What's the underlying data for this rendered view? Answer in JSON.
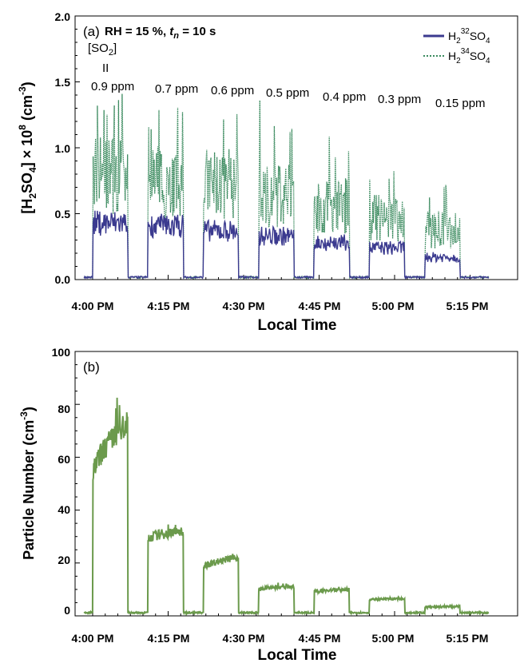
{
  "chart_data": [
    {
      "type": "line",
      "panel_label": "(a)",
      "condition_label": "RH = 15 %, t_n = 10 s",
      "condition_parts": {
        "rh": "RH = 15 %, ",
        "t": "t",
        "n": "n",
        "rest": " = 10 s"
      },
      "ylabel": "[H2SO4] × 10^8 (cm^-3)",
      "ylabel_parts": {
        "a": "[H",
        "b": "2",
        "c": "SO",
        "d": "4",
        "e": "] × 10",
        "f": "8",
        "g": " (cm",
        "h": "-3",
        "i": ")"
      },
      "xlabel": "Local Time",
      "xticks": [
        "4:00 PM",
        "4:15 PM",
        "4:30 PM",
        "4:45 PM",
        "5:00 PM",
        "5:15 PM"
      ],
      "yticks": [
        "0.0",
        "0.5",
        "1.0",
        "1.5",
        "2.0"
      ],
      "ylim": [
        0,
        2.0
      ],
      "xlim_min_after_4pm": [
        -2,
        79
      ],
      "so2_header": {
        "a": "[SO",
        "b": "2",
        "c": "]",
        "eq": "II"
      },
      "annotations": [
        "0.9 ppm",
        "0.7 ppm",
        "0.6 ppm",
        "0.5 ppm",
        "0.4 ppm",
        "0.3 ppm",
        "0.15 ppm"
      ],
      "series": [
        {
          "name": "H2 32SO4",
          "name_parts": {
            "a": "H",
            "b": "2",
            "c": "32",
            "d": "SO",
            "e": "4"
          },
          "color": "#3b3a8f",
          "style": "solid",
          "pulses": [
            {
              "start_min": 0,
              "end_min": 7,
              "level": 0.43
            },
            {
              "start_min": 11,
              "end_min": 18,
              "level": 0.41
            },
            {
              "start_min": 22,
              "end_min": 29,
              "level": 0.37
            },
            {
              "start_min": 33,
              "end_min": 40,
              "level": 0.33
            },
            {
              "start_min": 44,
              "end_min": 51,
              "level": 0.28
            },
            {
              "start_min": 55,
              "end_min": 62,
              "level": 0.24
            },
            {
              "start_min": 66,
              "end_min": 73,
              "level": 0.17
            }
          ]
        },
        {
          "name": "H2 34SO4",
          "name_parts": {
            "a": "H",
            "b": "2",
            "c": "34",
            "d": "SO",
            "e": "4"
          },
          "color": "#3a8a5e",
          "style": "dotted",
          "pulses": [
            {
              "start_min": 0,
              "end_min": 7,
              "level": 0.9,
              "peak": 1.41
            },
            {
              "start_min": 11,
              "end_min": 18,
              "level": 0.82,
              "peak": 1.33
            },
            {
              "start_min": 22,
              "end_min": 29,
              "level": 0.8,
              "peak": 1.38
            },
            {
              "start_min": 33,
              "end_min": 40,
              "level": 0.72,
              "peak": 1.36
            },
            {
              "start_min": 44,
              "end_min": 51,
              "level": 0.62,
              "peak": 1.12
            },
            {
              "start_min": 55,
              "end_min": 62,
              "level": 0.52,
              "peak": 0.88
            },
            {
              "start_min": 66,
              "end_min": 73,
              "level": 0.42,
              "peak": 0.72
            }
          ]
        }
      ]
    },
    {
      "type": "line",
      "panel_label": "(b)",
      "ylabel": "Particle Number (cm^-3)",
      "ylabel_parts": {
        "a": "Particle Number (cm",
        "b": "-3",
        "c": ")"
      },
      "xlabel": "Local Time",
      "xticks": [
        "4:00 PM",
        "4:15 PM",
        "4:30 PM",
        "4:45 PM",
        "5:00 PM",
        "5:15 PM"
      ],
      "yticks": [
        "0",
        "20",
        "40",
        "60",
        "80",
        "100"
      ],
      "ylim": [
        0,
        100
      ],
      "xlim_min_after_4pm": [
        -2,
        79
      ],
      "series": [
        {
          "name": "Particle Number",
          "color": "#6b9a4c",
          "pulses": [
            {
              "start_min": 0,
              "end_min": 7,
              "from": 50,
              "to": 73,
              "peak": 85
            },
            {
              "start_min": 11,
              "end_min": 18,
              "from": 29,
              "to": 32,
              "peak": 36
            },
            {
              "start_min": 22,
              "end_min": 29,
              "from": 18,
              "to": 22,
              "peak": 24
            },
            {
              "start_min": 33,
              "end_min": 40,
              "from": 10,
              "to": 11,
              "peak": 13
            },
            {
              "start_min": 44,
              "end_min": 51,
              "from": 9,
              "to": 10,
              "peak": 11
            },
            {
              "start_min": 55,
              "end_min": 62,
              "from": 6,
              "to": 6.5,
              "peak": 7
            },
            {
              "start_min": 66,
              "end_min": 73,
              "from": 3.2,
              "to": 3.5,
              "peak": 4
            }
          ],
          "baseline": 1.2
        }
      ]
    }
  ]
}
